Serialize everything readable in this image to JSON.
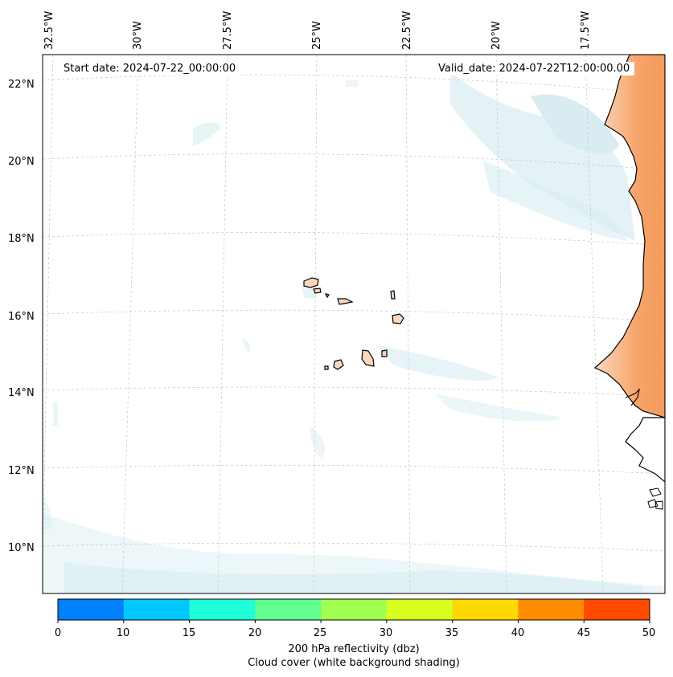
{
  "map": {
    "start_date": "Start date: 2024-07-22_00:00:00",
    "valid_date": "Valid_date: 2024-07-22T12:00:00.00",
    "lon_labels": [
      "32.5°W",
      "30°W",
      "27.5°W",
      "25°W",
      "22.5°W",
      "20°W",
      "17.5°W"
    ],
    "lat_labels": [
      "22°N",
      "20°N",
      "18°N",
      "16°N",
      "14°N",
      "12°N",
      "10°N"
    ],
    "land_color": "#f6a46b",
    "cloud_color": "#b8dde8"
  },
  "colorbar": {
    "ticks": [
      "0",
      "10",
      "15",
      "20",
      "25",
      "30",
      "35",
      "40",
      "45",
      "50"
    ],
    "colors": [
      "#0080ff",
      "#00c8ff",
      "#20ffd8",
      "#60ff90",
      "#a0ff50",
      "#d8ff20",
      "#ffd800",
      "#ff8c00",
      "#ff4a00"
    ],
    "label_line1": "200 hPa reflectivity (dbz)",
    "label_line2": "Cloud cover (white background shading)"
  }
}
